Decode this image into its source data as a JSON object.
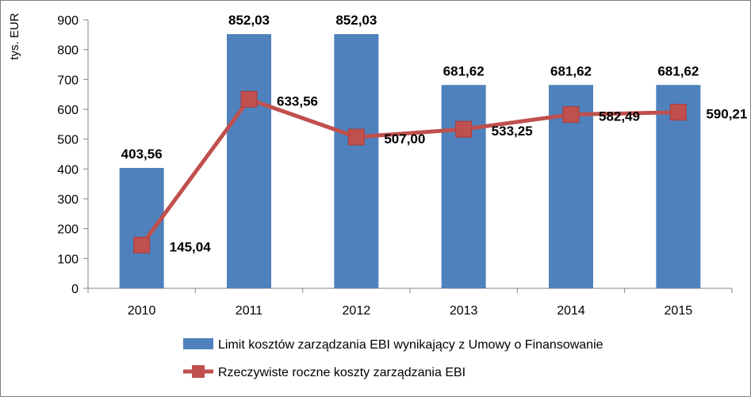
{
  "chart_data": {
    "type": "bar",
    "categories": [
      "2010",
      "2011",
      "2012",
      "2013",
      "2014",
      "2015"
    ],
    "ylabel": "tys. EUR",
    "ylim": [
      0,
      900
    ],
    "yticks": [
      0,
      100,
      200,
      300,
      400,
      500,
      600,
      700,
      800,
      900
    ],
    "grid": false,
    "legend_position": "bottom",
    "series": [
      {
        "name": "Limit kosztów zarządzania EBI wynikający z Umowy o Finansowanie",
        "type": "bar",
        "color": "#4f81bd",
        "values": [
          403.56,
          852.03,
          852.03,
          681.62,
          681.62,
          681.62
        ],
        "labels": [
          "403,56",
          "852,03",
          "852,03",
          "681,62",
          "681,62",
          "681,62"
        ]
      },
      {
        "name": "Rzeczywiste roczne koszty zarządzania EBI",
        "type": "line",
        "color": "#c0504d",
        "values": [
          145.04,
          633.56,
          507.0,
          533.25,
          582.49,
          590.21
        ],
        "labels": [
          "145,04",
          "633,56",
          "507,00",
          "533,25",
          "582,49",
          "590,21"
        ]
      }
    ]
  }
}
